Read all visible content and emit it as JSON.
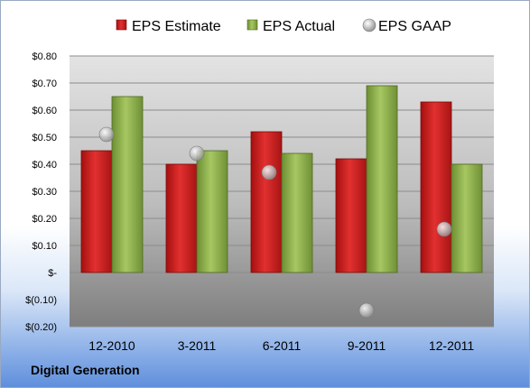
{
  "company": "Digital Generation",
  "colors": {
    "estimate": "#cc2020",
    "actual": "#8db04a",
    "gaap": "#b8b8b8"
  },
  "chart_data": {
    "type": "bar",
    "categories": [
      "12-2010",
      "3-2011",
      "6-2011",
      "9-2011",
      "12-2011"
    ],
    "series": [
      {
        "name": "EPS Estimate",
        "kind": "bar",
        "values": [
          0.45,
          0.4,
          0.52,
          0.42,
          0.63
        ]
      },
      {
        "name": "EPS Actual",
        "kind": "bar",
        "values": [
          0.65,
          0.45,
          0.44,
          0.69,
          0.4
        ]
      },
      {
        "name": "EPS GAAP",
        "kind": "marker",
        "values": [
          0.51,
          0.44,
          0.37,
          -0.14,
          0.16
        ]
      }
    ],
    "ylim": [
      -0.2,
      0.8
    ],
    "yticks": [
      -0.2,
      -0.1,
      0.0,
      0.1,
      0.2,
      0.3,
      0.4,
      0.5,
      0.6,
      0.7,
      0.8
    ],
    "ytick_labels": [
      "$(0.20)",
      "$(0.10)",
      "$-",
      "$0.10",
      "$0.20",
      "$0.30",
      "$0.40",
      "$0.50",
      "$0.60",
      "$0.70",
      "$0.80"
    ],
    "legend_position": "top",
    "grid": true
  }
}
